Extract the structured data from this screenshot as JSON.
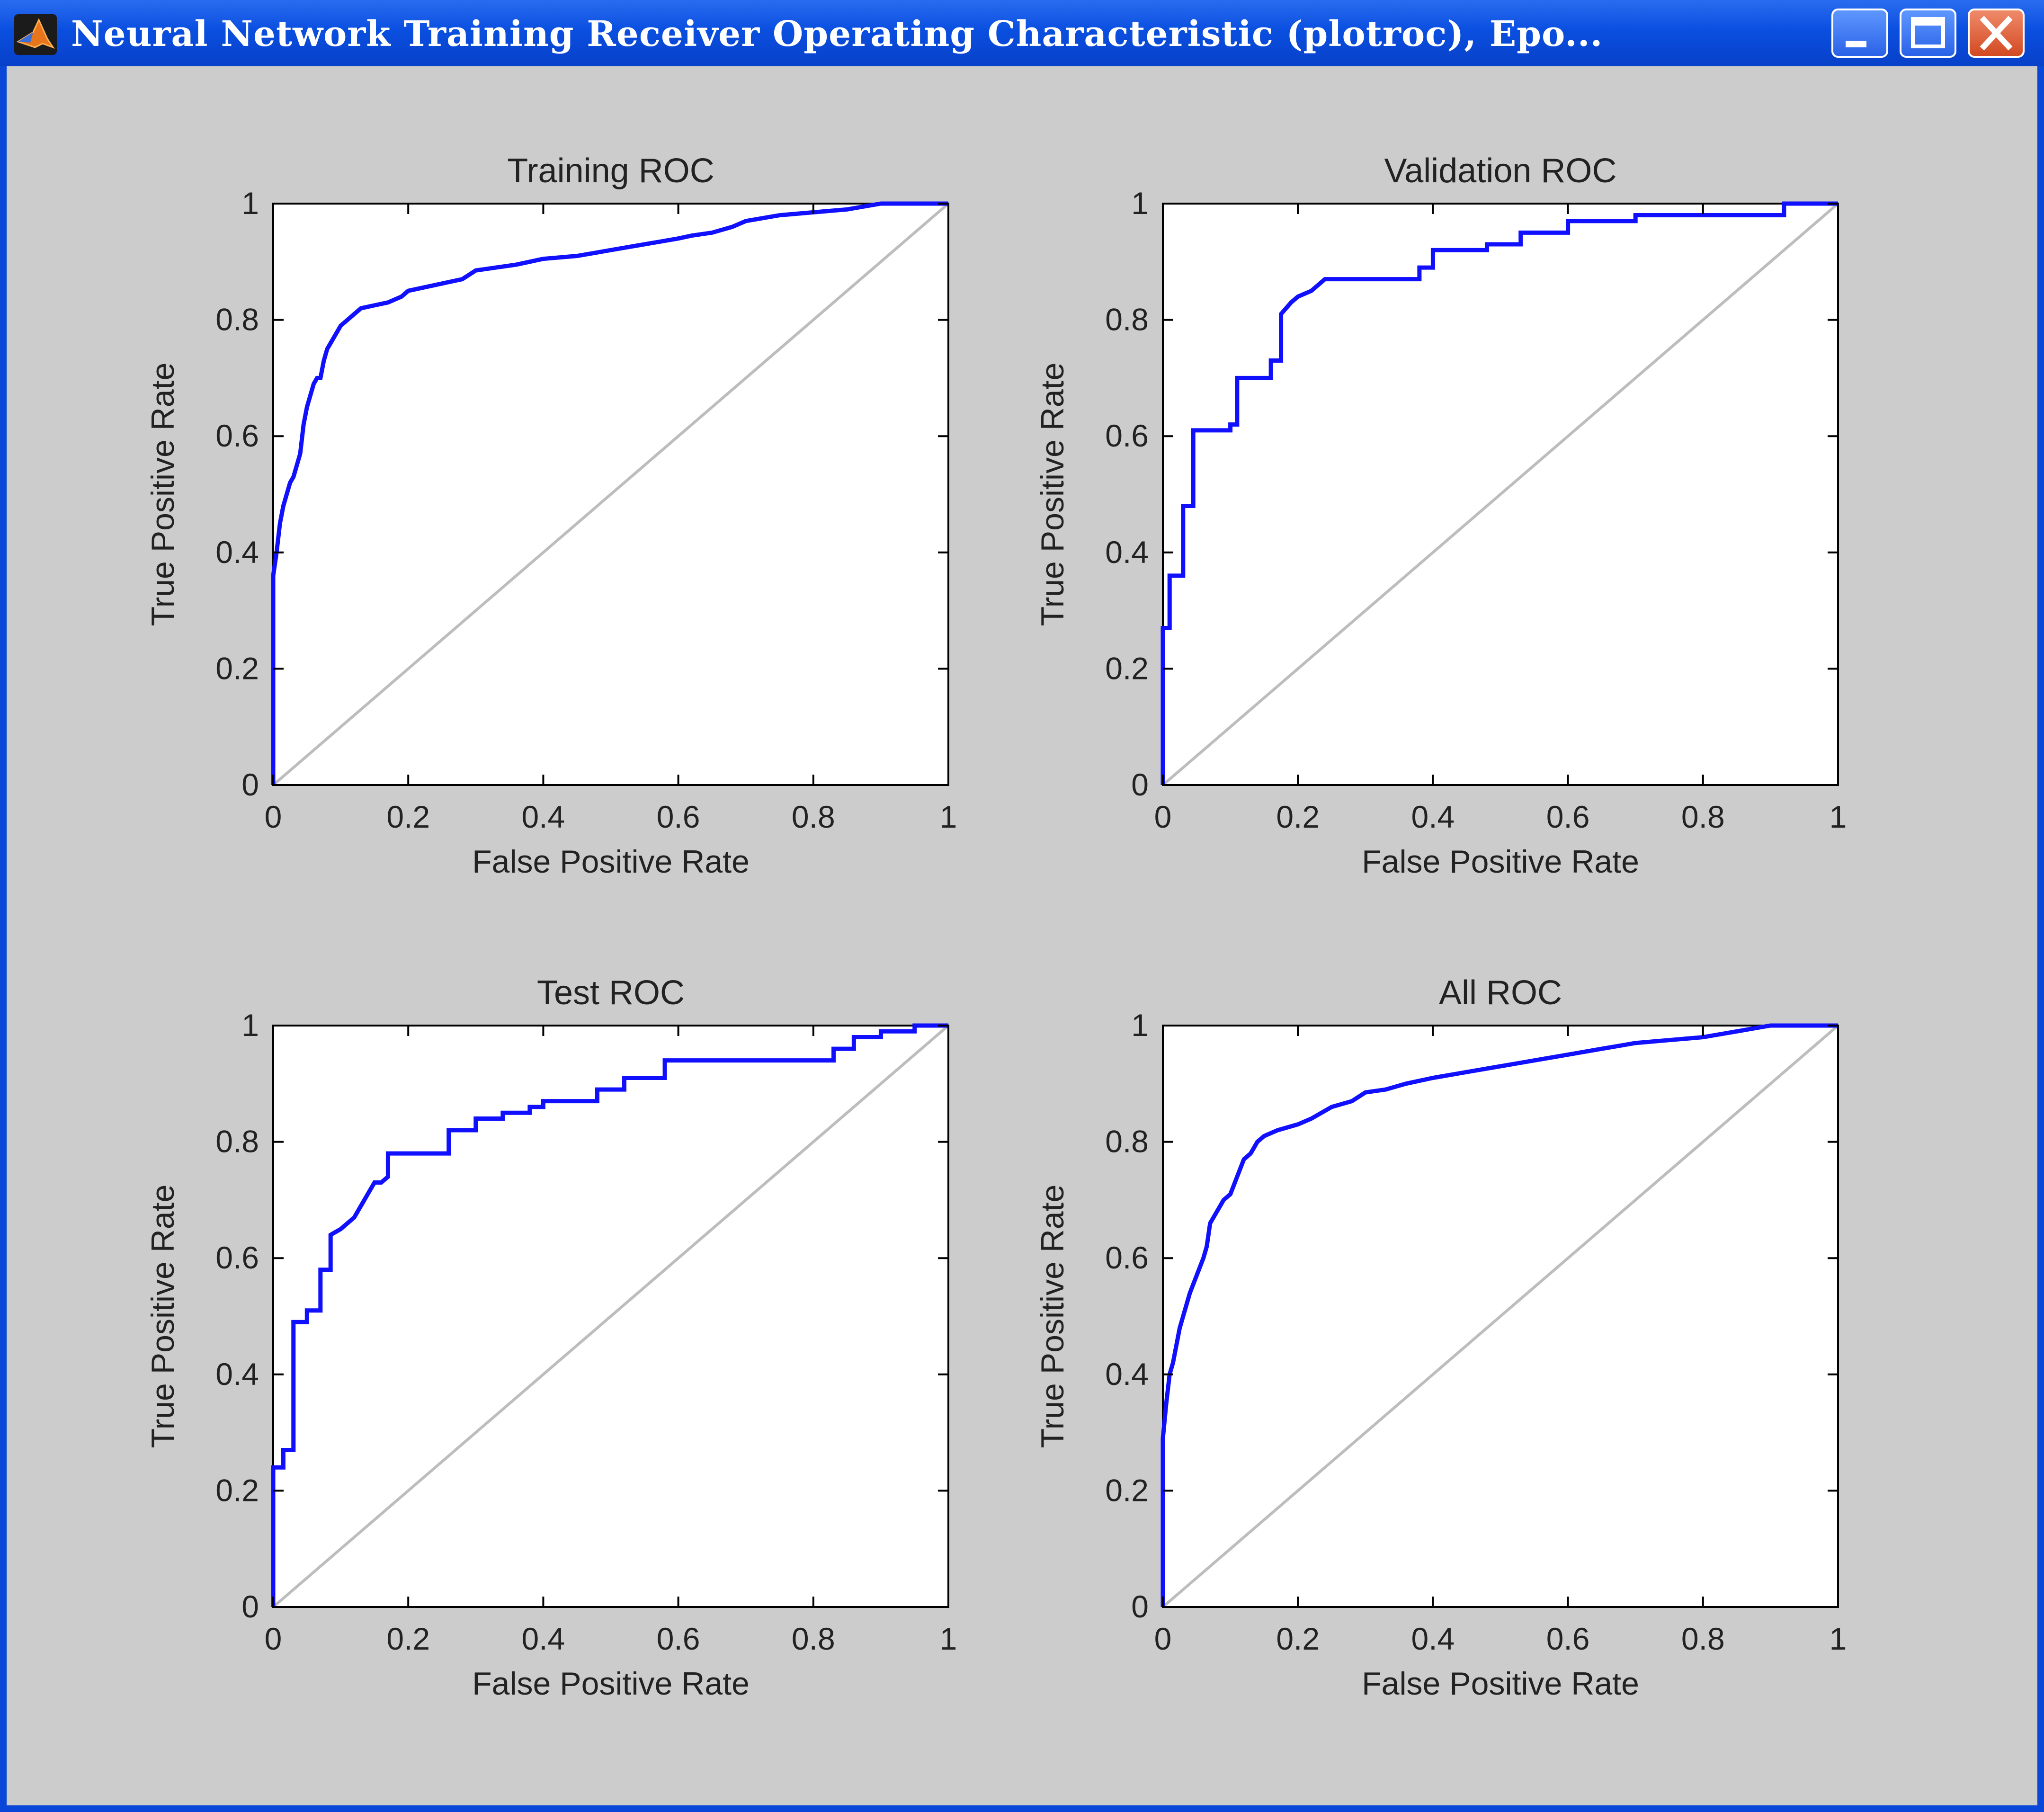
{
  "window": {
    "title": "Neural Network Training Receiver Operating Characteristic (plotroc), Epo..."
  },
  "colors": {
    "roc_line": "#1010ff",
    "diagonal": "#bdbdbd",
    "background": "#cccccc"
  },
  "icons": {
    "app": "matlab-icon",
    "minimize": "minimize-icon",
    "maximize": "maximize-icon",
    "close": "close-icon"
  },
  "chart_data": [
    {
      "type": "line",
      "title": "Training ROC",
      "xlabel": "False Positive Rate",
      "ylabel": "True Positive Rate",
      "xlim": [
        0,
        1
      ],
      "ylim": [
        0,
        1
      ],
      "xticks": [
        "0",
        "0.2",
        "0.4",
        "0.6",
        "0.8",
        "1"
      ],
      "yticks": [
        "0",
        "0.2",
        "0.4",
        "0.6",
        "0.8",
        "1"
      ],
      "series": [
        {
          "x": [
            0,
            0,
            0.005,
            0.01,
            0.015,
            0.02,
            0.025,
            0.03,
            0.035,
            0.04,
            0.045,
            0.05,
            0.055,
            0.06,
            0.065,
            0.07,
            0.075,
            0.08,
            0.09,
            0.1,
            0.11,
            0.12,
            0.13,
            0.15,
            0.17,
            0.19,
            0.2,
            0.22,
            0.24,
            0.26,
            0.28,
            0.3,
            0.33,
            0.36,
            0.38,
            0.4,
            0.45,
            0.5,
            0.55,
            0.6,
            0.62,
            0.65,
            0.68,
            0.7,
            0.75,
            0.8,
            0.85,
            0.9,
            0.95,
            1
          ],
          "y": [
            0,
            0.36,
            0.4,
            0.45,
            0.48,
            0.5,
            0.52,
            0.53,
            0.55,
            0.57,
            0.62,
            0.65,
            0.67,
            0.69,
            0.7,
            0.7,
            0.73,
            0.75,
            0.77,
            0.79,
            0.8,
            0.81,
            0.82,
            0.825,
            0.83,
            0.84,
            0.85,
            0.855,
            0.86,
            0.865,
            0.87,
            0.885,
            0.89,
            0.895,
            0.9,
            0.905,
            0.91,
            0.92,
            0.93,
            0.94,
            0.945,
            0.95,
            0.96,
            0.97,
            0.98,
            0.985,
            0.99,
            1,
            1,
            1
          ]
        },
        {
          "x": [
            0,
            1
          ],
          "y": [
            0,
            1
          ]
        }
      ]
    },
    {
      "type": "line",
      "title": "Validation ROC",
      "xlabel": "False Positive Rate",
      "ylabel": "True Positive Rate",
      "xlim": [
        0,
        1
      ],
      "ylim": [
        0,
        1
      ],
      "xticks": [
        "0",
        "0.2",
        "0.4",
        "0.6",
        "0.8",
        "1"
      ],
      "yticks": [
        "0",
        "0.2",
        "0.4",
        "0.6",
        "0.8",
        "1"
      ],
      "series": [
        {
          "x": [
            0,
            0,
            0.01,
            0.01,
            0.03,
            0.03,
            0.045,
            0.045,
            0.1,
            0.1,
            0.11,
            0.11,
            0.16,
            0.16,
            0.175,
            0.175,
            0.19,
            0.2,
            0.22,
            0.24,
            0.38,
            0.38,
            0.4,
            0.4,
            0.48,
            0.48,
            0.53,
            0.53,
            0.6,
            0.6,
            0.7,
            0.7,
            0.92,
            0.92,
            1
          ],
          "y": [
            0,
            0.27,
            0.27,
            0.36,
            0.36,
            0.48,
            0.48,
            0.61,
            0.61,
            0.62,
            0.62,
            0.7,
            0.7,
            0.73,
            0.73,
            0.81,
            0.83,
            0.84,
            0.85,
            0.87,
            0.87,
            0.89,
            0.89,
            0.92,
            0.92,
            0.93,
            0.93,
            0.95,
            0.95,
            0.97,
            0.97,
            0.98,
            0.98,
            1,
            1
          ]
        },
        {
          "x": [
            0,
            1
          ],
          "y": [
            0,
            1
          ]
        }
      ]
    },
    {
      "type": "line",
      "title": "Test ROC",
      "xlabel": "False Positive Rate",
      "ylabel": "True Positive Rate",
      "xlim": [
        0,
        1
      ],
      "ylim": [
        0,
        1
      ],
      "xticks": [
        "0",
        "0.2",
        "0.4",
        "0.6",
        "0.8",
        "1"
      ],
      "yticks": [
        "0",
        "0.2",
        "0.4",
        "0.6",
        "0.8",
        "1"
      ],
      "series": [
        {
          "x": [
            0,
            0,
            0.015,
            0.015,
            0.03,
            0.03,
            0.05,
            0.05,
            0.07,
            0.07,
            0.085,
            0.085,
            0.1,
            0.12,
            0.13,
            0.14,
            0.15,
            0.16,
            0.17,
            0.17,
            0.26,
            0.26,
            0.3,
            0.3,
            0.34,
            0.34,
            0.38,
            0.38,
            0.4,
            0.4,
            0.48,
            0.48,
            0.52,
            0.52,
            0.58,
            0.58,
            0.83,
            0.83,
            0.86,
            0.86,
            0.9,
            0.9,
            0.95,
            0.95,
            1
          ],
          "y": [
            0,
            0.24,
            0.24,
            0.27,
            0.27,
            0.49,
            0.49,
            0.51,
            0.51,
            0.58,
            0.58,
            0.64,
            0.65,
            0.67,
            0.69,
            0.71,
            0.73,
            0.73,
            0.74,
            0.78,
            0.78,
            0.82,
            0.82,
            0.84,
            0.84,
            0.85,
            0.85,
            0.86,
            0.86,
            0.87,
            0.87,
            0.89,
            0.89,
            0.91,
            0.91,
            0.94,
            0.94,
            0.96,
            0.96,
            0.98,
            0.98,
            0.99,
            0.99,
            1,
            1
          ]
        },
        {
          "x": [
            0,
            1
          ],
          "y": [
            0,
            1
          ]
        }
      ]
    },
    {
      "type": "line",
      "title": "All ROC",
      "xlabel": "False Positive Rate",
      "ylabel": "True Positive Rate",
      "xlim": [
        0,
        1
      ],
      "ylim": [
        0,
        1
      ],
      "xticks": [
        "0",
        "0.2",
        "0.4",
        "0.6",
        "0.8",
        "1"
      ],
      "yticks": [
        "0",
        "0.2",
        "0.4",
        "0.6",
        "0.8",
        "1"
      ],
      "series": [
        {
          "x": [
            0,
            0,
            0.005,
            0.01,
            0.015,
            0.02,
            0.025,
            0.03,
            0.035,
            0.04,
            0.05,
            0.06,
            0.065,
            0.07,
            0.08,
            0.09,
            0.1,
            0.11,
            0.12,
            0.13,
            0.14,
            0.15,
            0.17,
            0.2,
            0.22,
            0.25,
            0.28,
            0.3,
            0.33,
            0.36,
            0.4,
            0.45,
            0.5,
            0.55,
            0.6,
            0.65,
            0.7,
            0.75,
            0.8,
            0.85,
            0.9,
            0.95,
            1
          ],
          "y": [
            0,
            0.29,
            0.35,
            0.4,
            0.42,
            0.45,
            0.48,
            0.5,
            0.52,
            0.54,
            0.57,
            0.6,
            0.62,
            0.66,
            0.68,
            0.7,
            0.71,
            0.74,
            0.77,
            0.78,
            0.8,
            0.81,
            0.82,
            0.83,
            0.84,
            0.86,
            0.87,
            0.885,
            0.89,
            0.9,
            0.91,
            0.92,
            0.93,
            0.94,
            0.95,
            0.96,
            0.97,
            0.975,
            0.98,
            0.99,
            1,
            1,
            1
          ]
        },
        {
          "x": [
            0,
            1
          ],
          "y": [
            0,
            1
          ]
        }
      ]
    }
  ]
}
